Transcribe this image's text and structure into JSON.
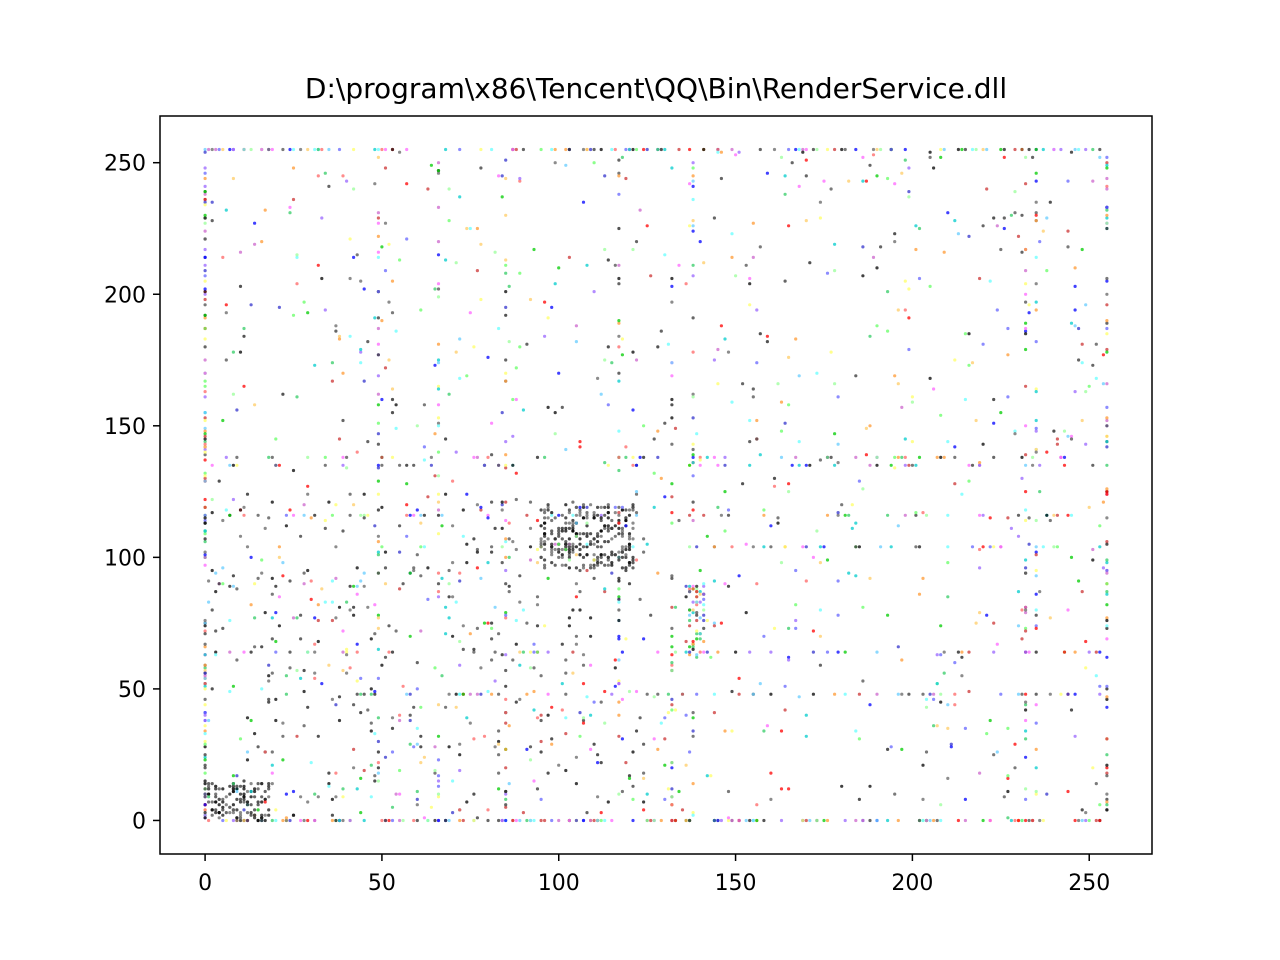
{
  "chart_data": {
    "type": "scatter",
    "title": "D:\\program\\x86\\Tencent\\QQ\\Bin\\RenderService.dll",
    "xlabel": "",
    "ylabel": "",
    "xlim": [
      -12.75,
      267.75
    ],
    "ylim": [
      -12.75,
      267.75
    ],
    "xticks": [
      0,
      50,
      100,
      150,
      200,
      250
    ],
    "yticks": [
      0,
      50,
      100,
      150,
      200,
      250
    ],
    "grid": false,
    "legend": "none",
    "marker_colors": [
      "#000000",
      "#1a1a1a",
      "#333333",
      "#4d4d4d",
      "#666666",
      "#0000ff",
      "#3333cc",
      "#6666ff",
      "#ff0000",
      "#ff6666",
      "#cc3333",
      "#00cc00",
      "#66ff66",
      "#33cc66",
      "#00cccc",
      "#66ffff",
      "#ff66ff",
      "#cc66cc",
      "#9966ff",
      "#ffcc66",
      "#ffff66",
      "#ff9933",
      "#99ff99",
      "#66ccff"
    ],
    "data_summary": "Byte-pair scatter of file content (values 0–255 on both axes); dense band at x=0 and y=0, rows of points near y=255, y=138 and y=116, columns near x=0, x=49, x=117, x=138, x=232 and x=255, and a dense dark cluster at x≈95–120, y≈95–120."
  }
}
